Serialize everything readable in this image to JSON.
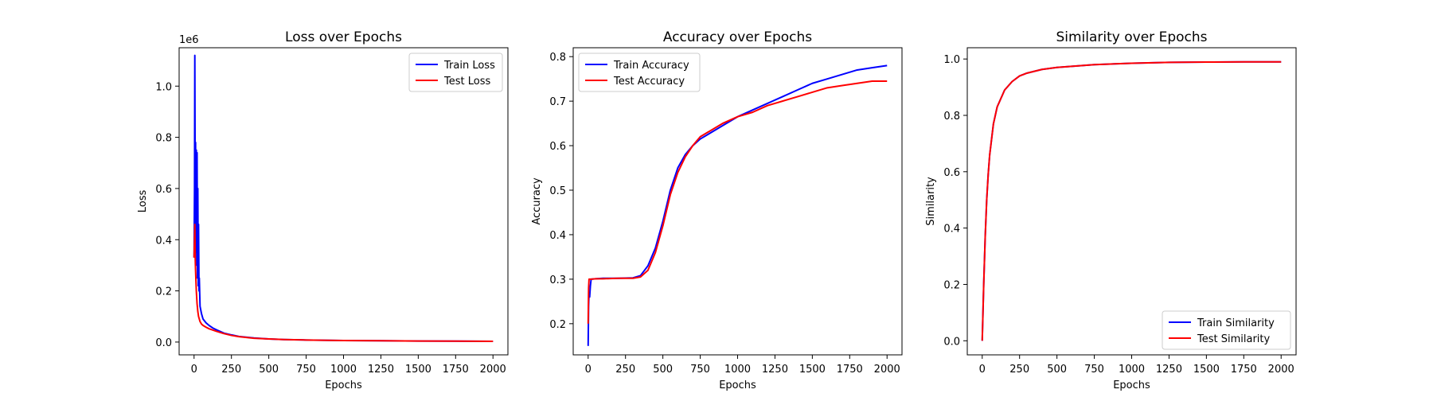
{
  "chart_data": [
    {
      "type": "line",
      "title": "Loss over Epochs",
      "xlabel": "Epochs",
      "ylabel": "Loss",
      "y_offset_label": "1e6",
      "xlim": [
        -100,
        2100
      ],
      "ylim": [
        -0.05,
        1.15
      ],
      "xticks": [
        0,
        250,
        500,
        750,
        1000,
        1250,
        1500,
        1750,
        2000
      ],
      "yticks": [
        0.0,
        0.2,
        0.4,
        0.6,
        0.8,
        1.0
      ],
      "ytick_labels": [
        "0.0",
        "0.2",
        "0.4",
        "0.6",
        "0.8",
        "1.0"
      ],
      "grid": false,
      "legend_position": "top-right",
      "series": [
        {
          "name": "Train Loss",
          "color": "#0000ff",
          "points": [
            [
              0,
              0.33
            ],
            [
              3,
              0.6
            ],
            [
              5,
              1.12
            ],
            [
              8,
              0.5
            ],
            [
              10,
              0.78
            ],
            [
              13,
              0.35
            ],
            [
              15,
              0.75
            ],
            [
              18,
              0.3
            ],
            [
              20,
              0.74
            ],
            [
              23,
              0.25
            ],
            [
              25,
              0.6
            ],
            [
              28,
              0.22
            ],
            [
              30,
              0.46
            ],
            [
              33,
              0.2
            ],
            [
              35,
              0.25
            ],
            [
              40,
              0.14
            ],
            [
              50,
              0.11
            ],
            [
              60,
              0.09
            ],
            [
              80,
              0.075
            ],
            [
              100,
              0.065
            ],
            [
              125,
              0.055
            ],
            [
              150,
              0.048
            ],
            [
              200,
              0.035
            ],
            [
              250,
              0.028
            ],
            [
              300,
              0.022
            ],
            [
              400,
              0.016
            ],
            [
              500,
              0.012
            ],
            [
              600,
              0.01
            ],
            [
              750,
              0.008
            ],
            [
              1000,
              0.006
            ],
            [
              1250,
              0.005
            ],
            [
              1500,
              0.004
            ],
            [
              1750,
              0.0035
            ],
            [
              2000,
              0.003
            ]
          ]
        },
        {
          "name": "Test Loss",
          "color": "#ff0000",
          "points": [
            [
              0,
              0.33
            ],
            [
              3,
              0.4
            ],
            [
              5,
              0.46
            ],
            [
              8,
              0.32
            ],
            [
              10,
              0.28
            ],
            [
              15,
              0.2
            ],
            [
              20,
              0.15
            ],
            [
              25,
              0.12
            ],
            [
              30,
              0.1
            ],
            [
              40,
              0.08
            ],
            [
              50,
              0.07
            ],
            [
              60,
              0.065
            ],
            [
              80,
              0.058
            ],
            [
              100,
              0.052
            ],
            [
              125,
              0.047
            ],
            [
              150,
              0.042
            ],
            [
              200,
              0.033
            ],
            [
              250,
              0.026
            ],
            [
              300,
              0.021
            ],
            [
              400,
              0.015
            ],
            [
              500,
              0.012
            ],
            [
              600,
              0.01
            ],
            [
              750,
              0.008
            ],
            [
              1000,
              0.006
            ],
            [
              1250,
              0.005
            ],
            [
              1500,
              0.004
            ],
            [
              1750,
              0.0035
            ],
            [
              2000,
              0.003
            ]
          ]
        }
      ]
    },
    {
      "type": "line",
      "title": "Accuracy over Epochs",
      "xlabel": "Epochs",
      "ylabel": "Accuracy",
      "xlim": [
        -100,
        2100
      ],
      "ylim": [
        0.13,
        0.82
      ],
      "xticks": [
        0,
        250,
        500,
        750,
        1000,
        1250,
        1500,
        1750,
        2000
      ],
      "yticks": [
        0.2,
        0.3,
        0.4,
        0.5,
        0.6,
        0.7,
        0.8
      ],
      "ytick_labels": [
        "0.2",
        "0.3",
        "0.4",
        "0.5",
        "0.6",
        "0.7",
        "0.8"
      ],
      "grid": false,
      "legend_position": "top-left",
      "series": [
        {
          "name": "Train Accuracy",
          "color": "#0000ff",
          "points": [
            [
              0,
              0.15
            ],
            [
              3,
              0.24
            ],
            [
              6,
              0.27
            ],
            [
              10,
              0.26
            ],
            [
              15,
              0.285
            ],
            [
              20,
              0.3
            ],
            [
              50,
              0.301
            ],
            [
              100,
              0.302
            ],
            [
              200,
              0.302
            ],
            [
              300,
              0.303
            ],
            [
              350,
              0.308
            ],
            [
              400,
              0.33
            ],
            [
              450,
              0.37
            ],
            [
              500,
              0.43
            ],
            [
              550,
              0.5
            ],
            [
              600,
              0.55
            ],
            [
              650,
              0.58
            ],
            [
              700,
              0.6
            ],
            [
              750,
              0.615
            ],
            [
              800,
              0.625
            ],
            [
              900,
              0.645
            ],
            [
              1000,
              0.665
            ],
            [
              1100,
              0.68
            ],
            [
              1200,
              0.695
            ],
            [
              1300,
              0.71
            ],
            [
              1400,
              0.725
            ],
            [
              1500,
              0.74
            ],
            [
              1600,
              0.75
            ],
            [
              1700,
              0.76
            ],
            [
              1800,
              0.77
            ],
            [
              1900,
              0.775
            ],
            [
              2000,
              0.78
            ]
          ]
        },
        {
          "name": "Test Accuracy",
          "color": "#ff0000",
          "points": [
            [
              0,
              0.2
            ],
            [
              3,
              0.28
            ],
            [
              6,
              0.3
            ],
            [
              10,
              0.3
            ],
            [
              20,
              0.3
            ],
            [
              50,
              0.301
            ],
            [
              100,
              0.301
            ],
            [
              200,
              0.302
            ],
            [
              300,
              0.302
            ],
            [
              350,
              0.305
            ],
            [
              400,
              0.32
            ],
            [
              450,
              0.36
            ],
            [
              500,
              0.42
            ],
            [
              550,
              0.49
            ],
            [
              600,
              0.54
            ],
            [
              650,
              0.575
            ],
            [
              700,
              0.6
            ],
            [
              750,
              0.62
            ],
            [
              800,
              0.63
            ],
            [
              900,
              0.65
            ],
            [
              1000,
              0.665
            ],
            [
              1100,
              0.675
            ],
            [
              1200,
              0.69
            ],
            [
              1300,
              0.7
            ],
            [
              1400,
              0.71
            ],
            [
              1500,
              0.72
            ],
            [
              1600,
              0.73
            ],
            [
              1700,
              0.735
            ],
            [
              1800,
              0.74
            ],
            [
              1900,
              0.745
            ],
            [
              2000,
              0.745
            ]
          ]
        }
      ]
    },
    {
      "type": "line",
      "title": "Similarity over Epochs",
      "xlabel": "Epochs",
      "ylabel": "Similarity",
      "xlim": [
        -100,
        2100
      ],
      "ylim": [
        -0.05,
        1.04
      ],
      "xticks": [
        0,
        250,
        500,
        750,
        1000,
        1250,
        1500,
        1750,
        2000
      ],
      "yticks": [
        0.0,
        0.2,
        0.4,
        0.6,
        0.8,
        1.0
      ],
      "ytick_labels": [
        "0.0",
        "0.2",
        "0.4",
        "0.6",
        "0.8",
        "1.0"
      ],
      "grid": false,
      "legend_position": "bottom-right",
      "series": [
        {
          "name": "Train Similarity",
          "color": "#0000ff",
          "points": [
            [
              0,
              0.0
            ],
            [
              5,
              0.1
            ],
            [
              10,
              0.2
            ],
            [
              20,
              0.37
            ],
            [
              30,
              0.5
            ],
            [
              40,
              0.59
            ],
            [
              50,
              0.66
            ],
            [
              75,
              0.77
            ],
            [
              100,
              0.83
            ],
            [
              150,
              0.89
            ],
            [
              200,
              0.92
            ],
            [
              250,
              0.94
            ],
            [
              300,
              0.95
            ],
            [
              400,
              0.963
            ],
            [
              500,
              0.97
            ],
            [
              750,
              0.98
            ],
            [
              1000,
              0.985
            ],
            [
              1250,
              0.988
            ],
            [
              1500,
              0.989
            ],
            [
              1750,
              0.99
            ],
            [
              2000,
              0.99
            ]
          ]
        },
        {
          "name": "Test Similarity",
          "color": "#ff0000",
          "points": [
            [
              0,
              0.0
            ],
            [
              5,
              0.1
            ],
            [
              10,
              0.2
            ],
            [
              20,
              0.37
            ],
            [
              30,
              0.5
            ],
            [
              40,
              0.59
            ],
            [
              50,
              0.66
            ],
            [
              75,
              0.77
            ],
            [
              100,
              0.83
            ],
            [
              150,
              0.89
            ],
            [
              200,
              0.92
            ],
            [
              250,
              0.94
            ],
            [
              300,
              0.95
            ],
            [
              400,
              0.963
            ],
            [
              500,
              0.97
            ],
            [
              750,
              0.98
            ],
            [
              1000,
              0.985
            ],
            [
              1250,
              0.988
            ],
            [
              1500,
              0.989
            ],
            [
              1750,
              0.99
            ],
            [
              2000,
              0.99
            ]
          ]
        }
      ]
    }
  ]
}
